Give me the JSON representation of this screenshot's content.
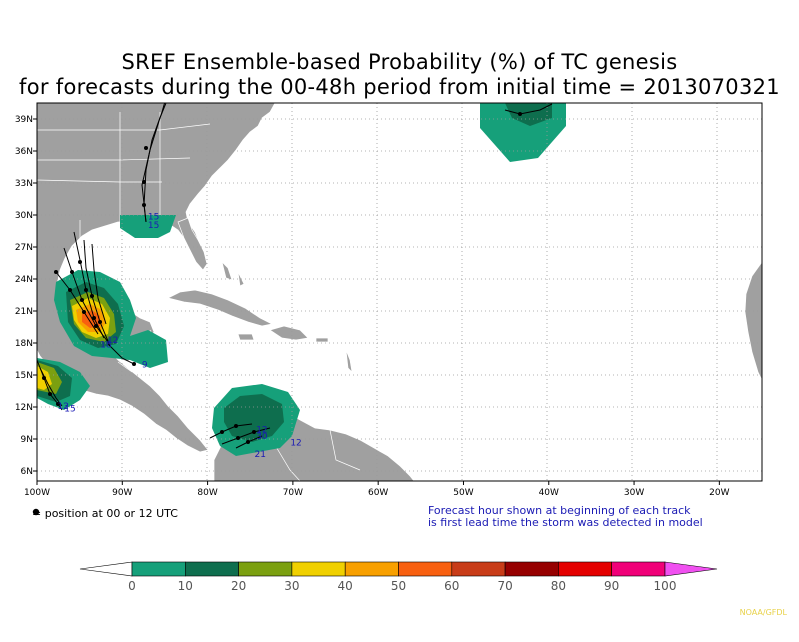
{
  "title_line1": "SREF Ensemble-based Probability (%) of TC genesis",
  "title_line2": "for forecasts during the 00-48h period from initial time = 2013070321",
  "lat_labels": [
    "39N",
    "36N",
    "33N",
    "30N",
    "27N",
    "24N",
    "21N",
    "18N",
    "15N",
    "12N",
    "9N",
    "6N"
  ],
  "lon_labels": [
    "100W",
    "90W",
    "80W",
    "70W",
    "60W",
    "50W",
    "40W",
    "30W",
    "20W"
  ],
  "position_note": "= position at 00 or 12 UTC",
  "forecast_note_line1": "Forecast hour shown at beginning of each track",
  "forecast_note_line2": "is first lead time the storm was detected in model",
  "colorbar": {
    "labels": [
      "0",
      "10",
      "20",
      "30",
      "40",
      "50",
      "60",
      "70",
      "80",
      "90",
      "100"
    ],
    "colors": [
      "#16a07a",
      "#0e6e4e",
      "#7ba010",
      "#f0d000",
      "#f8a000",
      "#f86010",
      "#c83c18",
      "#960000",
      "#e40000",
      "#f00078",
      "#f050f0"
    ]
  },
  "track_labels": [
    {
      "text": "15",
      "lat": 29.6,
      "lon": -87.0
    },
    {
      "text": "15",
      "lat": 28.8,
      "lon": -87.0
    },
    {
      "text": "12",
      "lat": 18.0,
      "lon": -91.8
    },
    {
      "text": "18",
      "lat": 17.6,
      "lon": -92.6
    },
    {
      "text": "9",
      "lat": 15.7,
      "lon": -87.7
    },
    {
      "text": "12",
      "lat": 11.8,
      "lon": -97.6
    },
    {
      "text": "15",
      "lat": 11.6,
      "lon": -96.8
    },
    {
      "text": "12",
      "lat": 9.6,
      "lon": -74.3
    },
    {
      "text": "30",
      "lat": 9.0,
      "lon": -74.3
    },
    {
      "text": "12",
      "lat": 8.4,
      "lon": -70.3
    },
    {
      "text": "21",
      "lat": 7.3,
      "lon": -74.5
    }
  ],
  "credit": "NOAA/GFDL"
}
